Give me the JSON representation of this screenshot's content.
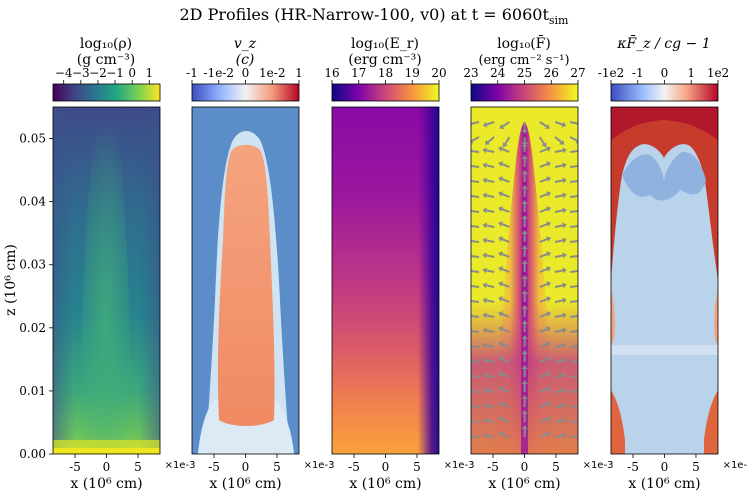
{
  "figure": {
    "title": "2D Profiles (HR-Narrow-100, v0) at t = 6060t",
    "title_sub": "sim",
    "ylabel": "z (10⁶ cm)",
    "xlabel": "x (10⁶ cm)",
    "x_ticks": [
      "-5",
      "0",
      "5"
    ],
    "x_offset": "×1e-3",
    "y_ticks": [
      "0.00",
      "0.01",
      "0.02",
      "0.03",
      "0.04",
      "0.05"
    ]
  },
  "chart_data": {
    "type": "heatmap",
    "title": "2D Profiles (HR-Narrow-100, v0) at t = 6060 t_sim",
    "xlabel": "x (10^6 cm)",
    "ylabel": "z (10^6 cm)",
    "xlim": [
      -0.0085,
      0.0085
    ],
    "ylim": [
      0.0,
      0.055
    ],
    "x_tick_values": [
      -0.005,
      0.0,
      0.005
    ],
    "y_tick_values": [
      0.0,
      0.01,
      0.02,
      0.03,
      0.04,
      0.05
    ],
    "panels": [
      {
        "id": "rho",
        "label_line1": "log₁₀(ρ)",
        "label_line2": "(g cm⁻³)",
        "colormap": "viridis",
        "colorbar_ticks": [
          "−4",
          "−3",
          "−2",
          "−1",
          "0",
          "1"
        ],
        "colorbar_range": [
          -5,
          1.5
        ]
      },
      {
        "id": "vz",
        "label_line1": "v_z",
        "label_line2": "(c)",
        "colormap": "coolwarm-symlog",
        "colorbar_ticks": [
          "-1",
          "-1e-2",
          "0",
          "1e-2",
          "1"
        ],
        "colorbar_range": [
          -1,
          1
        ]
      },
      {
        "id": "Er",
        "label_line1": "log₁₀(E_r)",
        "label_line2": "(erg cm⁻³)",
        "colormap": "plasma",
        "colorbar_ticks": [
          "16",
          "17",
          "18",
          "19",
          "20"
        ],
        "colorbar_range": [
          16,
          20
        ]
      },
      {
        "id": "F",
        "label_line1": "log₁₀(F̄)",
        "label_line2": "(erg cm⁻² s⁻¹)",
        "colormap": "plasma",
        "colorbar_ticks": [
          "23",
          "24",
          "25",
          "26",
          "27"
        ],
        "colorbar_range": [
          23,
          27
        ],
        "overlay": "flux vector arrows"
      },
      {
        "id": "kappaF",
        "label_line1": "κF̄_z / cg − 1",
        "label_line2": "",
        "colormap": "coolwarm-symlog",
        "colorbar_ticks": [
          "-1e2",
          "-1",
          "0",
          "1",
          "1e2"
        ],
        "colorbar_range": [
          -100,
          100
        ]
      }
    ]
  }
}
